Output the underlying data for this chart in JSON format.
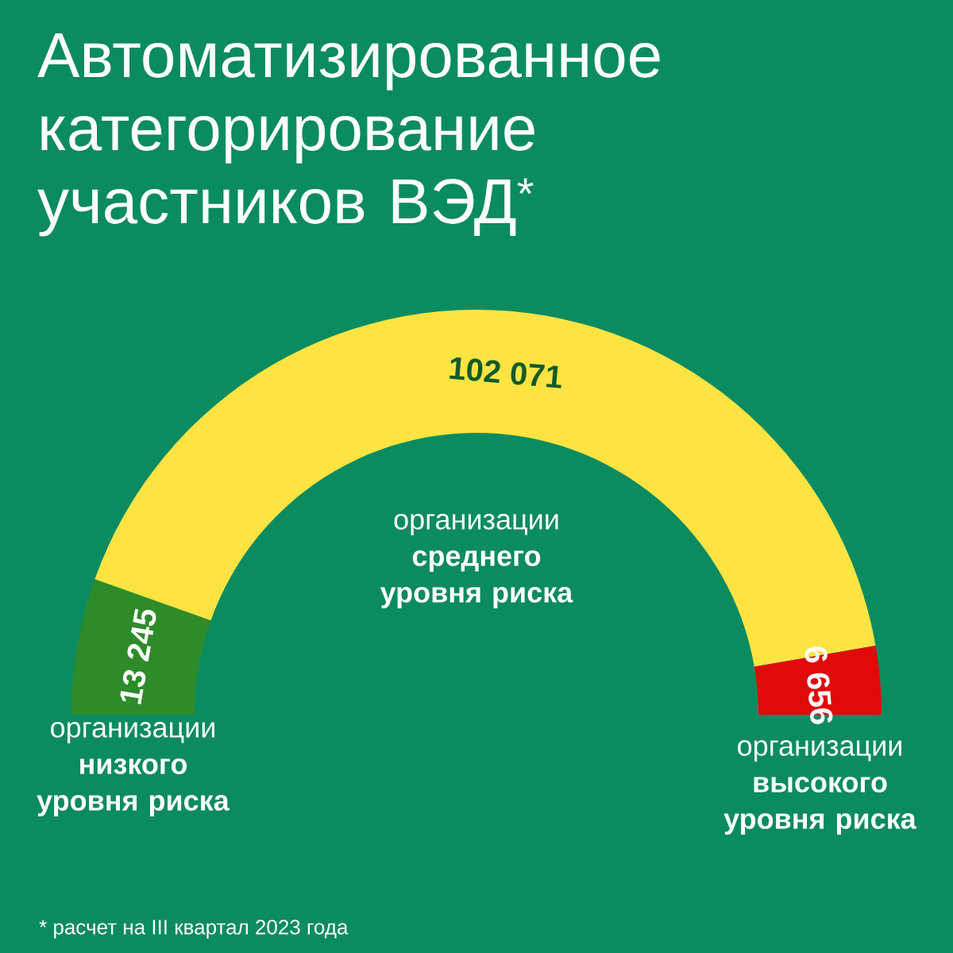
{
  "chart_data": {
    "type": "donut",
    "title": "Автоматизированное категорирование участников ВЭД$^{*}$",
    "categories": [
      "организации **низкого уровня риска**",
      "организации **среднего уровня риска**",
      "организации **высокого уровня риска**"
    ],
    "values": [
      13245,
      102071,
      6656
    ],
    "value_labels": [
      "13 245",
      "102 071",
      "6 656"
    ],
    "colors": [
      "#2e8b2a",
      "#fde443",
      "#e00a0a"
    ],
    "annotations": [
      "* расчет на III квартал 2023 года"
    ]
  }
}
